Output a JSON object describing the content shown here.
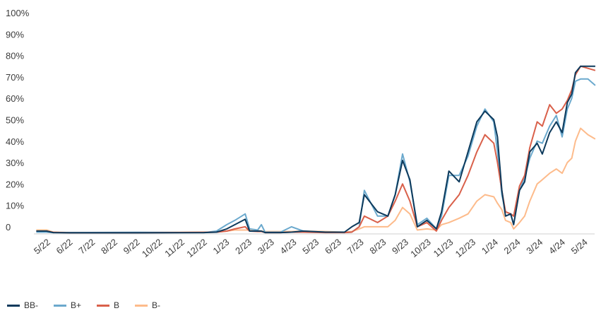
{
  "chart_data": {
    "type": "line",
    "title": "",
    "xlabel": "",
    "ylabel": "",
    "ylim": [
      0,
      100
    ],
    "y_ticks": [
      "0",
      "10%",
      "20%",
      "30%",
      "40%",
      "50%",
      "60%",
      "70%",
      "80%",
      "90%",
      "100%"
    ],
    "x_ticks": [
      "5/22",
      "6/22",
      "7/22",
      "8/22",
      "9/22",
      "10/22",
      "11/22",
      "12/22",
      "1/23",
      "2/23",
      "3/23",
      "4/23",
      "5/23",
      "6/23",
      "7/23",
      "8/23",
      "9/23",
      "10/23",
      "11/23",
      "12/23",
      "1/24",
      "2/24",
      "3/24",
      "4/24",
      "5/24"
    ],
    "grid": false,
    "legend_placement": "bottom-left",
    "x": [
      "2022-04-17",
      "2022-05-01",
      "2022-05-10",
      "2022-06-01",
      "2022-09-01",
      "2022-12-01",
      "2022-12-18",
      "2023-01-01",
      "2023-01-12",
      "2023-01-26",
      "2023-02-01",
      "2023-02-12",
      "2023-02-17",
      "2023-02-22",
      "2023-03-15",
      "2023-03-30",
      "2023-04-15",
      "2023-05-15",
      "2023-06-10",
      "2023-06-20",
      "2023-06-30",
      "2023-07-07",
      "2023-07-25",
      "2023-08-08",
      "2023-08-18",
      "2023-08-28",
      "2023-09-07",
      "2023-09-17",
      "2023-09-30",
      "2023-10-13",
      "2023-10-20",
      "2023-10-30",
      "2023-11-13",
      "2023-11-25",
      "2023-12-07",
      "2023-12-18",
      "2023-12-30",
      "2024-01-04",
      "2024-01-10",
      "2024-01-15",
      "2024-01-22",
      "2024-01-26",
      "2024-02-03",
      "2024-02-10",
      "2024-02-17",
      "2024-02-27",
      "2024-03-05",
      "2024-03-15",
      "2024-03-24",
      "2024-04-01",
      "2024-04-08",
      "2024-04-14",
      "2024-04-19",
      "2024-04-26",
      "2024-05-06",
      "2024-05-16"
    ],
    "series": [
      {
        "name": "BB-",
        "color": "#0d3a5c",
        "values": [
          1,
          1,
          0.3,
          0.2,
          0.2,
          0.3,
          0.5,
          2,
          4,
          6.5,
          1,
          1,
          1,
          0.3,
          0.3,
          0.5,
          1,
          0.5,
          0.5,
          3,
          5,
          18,
          10,
          8,
          18,
          34,
          25,
          3,
          6,
          2,
          10,
          29,
          24,
          38,
          52,
          57,
          53,
          45,
          20,
          8,
          9,
          4,
          20,
          24,
          38,
          42,
          37,
          47,
          52,
          47,
          61,
          65,
          75,
          78,
          78,
          78
        ]
      },
      {
        "name": "B+",
        "color": "#6ba9cd",
        "values": [
          0.5,
          0.5,
          0.3,
          0.3,
          0.4,
          0.3,
          1,
          4,
          6,
          9,
          2,
          1.5,
          4,
          0.5,
          0.5,
          3,
          1,
          0.5,
          0.3,
          0.5,
          3,
          20,
          8,
          8,
          18,
          37,
          24,
          4,
          7,
          2,
          8,
          27,
          27,
          36,
          50,
          58,
          52,
          38,
          18,
          10,
          9,
          8,
          20,
          26,
          35,
          43,
          42,
          50,
          55,
          45,
          58,
          63,
          71,
          72,
          72,
          69
        ]
      },
      {
        "name": "B",
        "color": "#d9604a",
        "values": [
          1,
          1,
          0.4,
          0.2,
          0.2,
          0.4,
          0.5,
          1,
          2,
          3,
          1,
          0.8,
          0.8,
          0.3,
          0.3,
          0.5,
          0.5,
          0.3,
          0.3,
          0.5,
          3,
          8,
          5,
          8,
          15,
          23,
          15,
          3,
          5,
          1,
          6,
          12,
          18,
          27,
          38,
          46,
          42,
          33,
          20,
          10,
          9,
          8,
          22,
          27,
          40,
          52,
          50,
          60,
          56,
          58,
          62,
          67,
          74,
          78,
          77,
          76
        ]
      },
      {
        "name": "B-",
        "color": "#fdbb8b",
        "values": [
          1.5,
          1.5,
          0.5,
          0.3,
          0.3,
          0.5,
          0.5,
          1,
          1.5,
          1.5,
          1.5,
          1.2,
          1,
          0.8,
          0.8,
          0.8,
          1,
          0.8,
          0.5,
          0.8,
          2,
          3,
          3,
          3,
          6,
          12,
          9,
          1.5,
          2,
          1.5,
          4,
          5,
          7,
          9,
          15,
          18,
          17,
          14,
          11,
          6,
          5,
          2,
          5,
          8,
          15,
          23,
          25,
          28,
          30,
          28,
          33,
          35,
          43,
          49,
          46,
          44
        ]
      }
    ]
  }
}
